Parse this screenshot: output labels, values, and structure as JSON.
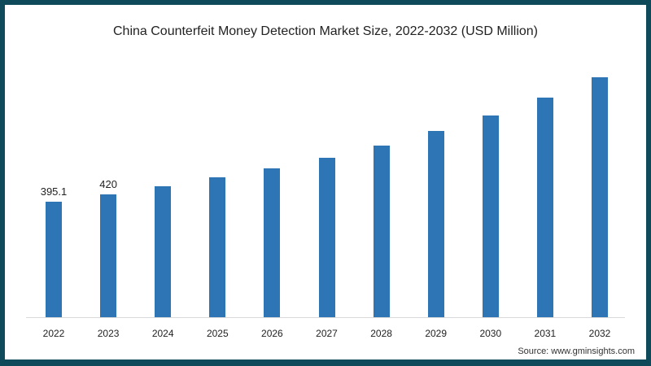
{
  "chart_data": {
    "type": "bar",
    "title": "China Counterfeit Money Detection Market Size, 2022-2032 (USD Million)",
    "categories": [
      "2022",
      "2023",
      "2024",
      "2025",
      "2026",
      "2027",
      "2028",
      "2029",
      "2030",
      "2031",
      "2032"
    ],
    "values": [
      395.1,
      420,
      447,
      478,
      509,
      545,
      587,
      637,
      690,
      750,
      820
    ],
    "data_labels": [
      "395.1",
      "420",
      "",
      "",
      "",
      "",
      "",
      "",
      "",
      "",
      ""
    ],
    "xlabel": "",
    "ylabel": "",
    "ylim": [
      0,
      880
    ],
    "grid": false,
    "legend": null,
    "bar_color": "#2e75b6",
    "source": "Source: www.gminsights.com"
  },
  "colors": {
    "frame": "#0f4a5a",
    "bar": "#2e75b6",
    "background": "#ffffff"
  }
}
